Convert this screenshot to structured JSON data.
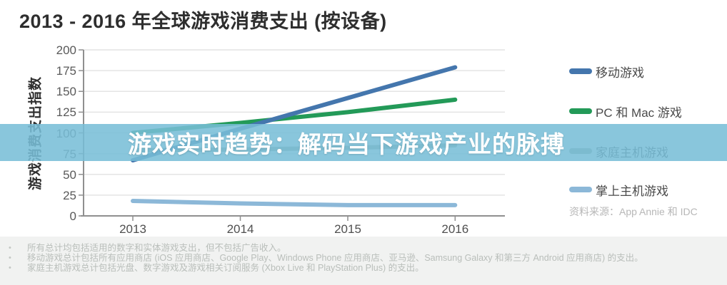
{
  "title": "2013 - 2016 年全球游戏消费支出 (按设备)",
  "overlay": {
    "text": "游戏实时趋势：解码当下游戏产业的脉搏",
    "band_color": "#86c0da",
    "text_color": "#ffffff"
  },
  "chart_data": {
    "type": "line",
    "title": "2013 - 2016 年全球游戏消费支出 (按设备)",
    "ylabel": "游戏消费支出指数",
    "xlabel": "",
    "categories": [
      "2013",
      "2014",
      "2015",
      "2016"
    ],
    "ylim": [
      0,
      200
    ],
    "yticks": [
      0,
      25,
      50,
      75,
      100,
      125,
      150,
      175,
      200
    ],
    "grid": true,
    "legend_position": "right",
    "series": [
      {
        "name": "移动游戏",
        "color": "#4476ad",
        "values": [
          67,
          105,
          142,
          179
        ]
      },
      {
        "name": "PC 和 Mac 游戏",
        "color": "#239a58",
        "values": [
          100,
          112,
          125,
          140
        ]
      },
      {
        "name": "家庭主机游戏",
        "color": "#9aa69d",
        "values": [
          79,
          80,
          82,
          85
        ]
      },
      {
        "name": "掌上主机游戏",
        "color": "#8cb8d8",
        "values": [
          18,
          15,
          13,
          13
        ]
      }
    ],
    "source": "资料来源：App Annie 和 IDC"
  },
  "footnotes": {
    "bullet": "•",
    "items": [
      "所有总计均包括适用的数字和实体游戏支出，但不包括广告收入。",
      "移动游戏总计包括所有应用商店 (iOS 应用商店、Google Play、Windows Phone 应用商店、亚马逊、Samsung Galaxy 和第三方 Android 应用商店) 的支出。",
      "家庭主机游戏总计包括光盘、数字游戏及游戏相关订阅服务 (Xbox Live 和 PlayStation Plus) 的支出。"
    ]
  }
}
